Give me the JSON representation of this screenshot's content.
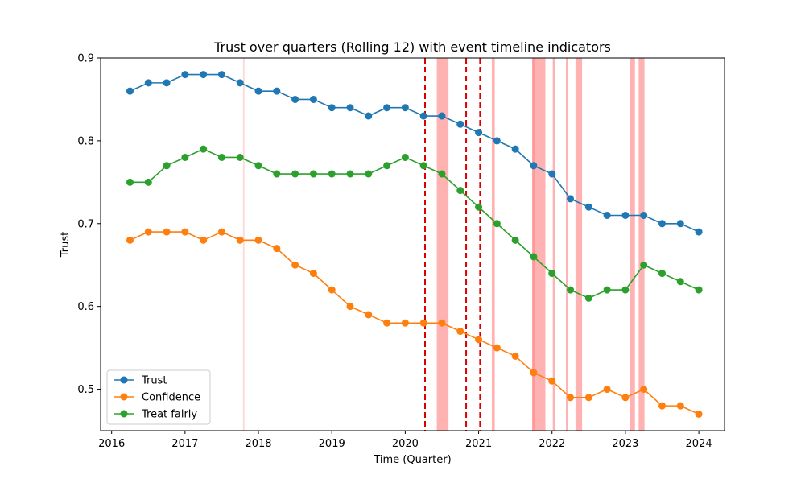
{
  "chart_data": {
    "type": "line",
    "title": "Trust over quarters (Rolling 12) with event timeline indicators",
    "xlabel": "Time (Quarter)",
    "ylabel": "Trust",
    "xlim": [
      2015.85,
      2024.35
    ],
    "ylim": [
      0.45,
      0.9
    ],
    "x_ticks": [
      2016,
      2017,
      2018,
      2019,
      2020,
      2021,
      2022,
      2023,
      2024
    ],
    "y_ticks": [
      0.5,
      0.6,
      0.7,
      0.8,
      0.9
    ],
    "y_tick_labels": [
      "0.5",
      "0.6",
      "0.7",
      "0.8",
      "0.9"
    ],
    "grid": false,
    "legend_position": "lower-left",
    "x": [
      2016.25,
      2016.5,
      2016.75,
      2017.0,
      2017.25,
      2017.5,
      2017.75,
      2018.0,
      2018.25,
      2018.5,
      2018.75,
      2019.0,
      2019.25,
      2019.5,
      2019.75,
      2020.0,
      2020.25,
      2020.5,
      2020.75,
      2021.0,
      2021.25,
      2021.5,
      2021.75,
      2022.0,
      2022.25,
      2022.5,
      2022.75,
      2023.0,
      2023.25,
      2023.5,
      2023.75,
      2024.0
    ],
    "series": [
      {
        "name": "Trust",
        "color": "#1f77b4",
        "values": [
          0.86,
          0.87,
          0.87,
          0.88,
          0.88,
          0.88,
          0.87,
          0.86,
          0.86,
          0.85,
          0.85,
          0.84,
          0.84,
          0.83,
          0.84,
          0.84,
          0.83,
          0.83,
          0.82,
          0.81,
          0.8,
          0.79,
          0.77,
          0.76,
          0.73,
          0.72,
          0.71,
          0.71,
          0.71,
          0.7,
          0.7,
          0.69
        ]
      },
      {
        "name": "Confidence",
        "color": "#ff7f0e",
        "values": [
          0.68,
          0.69,
          0.69,
          0.69,
          0.68,
          0.69,
          0.68,
          0.68,
          0.67,
          0.65,
          0.64,
          0.62,
          0.6,
          0.59,
          0.58,
          0.58,
          0.58,
          0.58,
          0.57,
          0.56,
          0.55,
          0.54,
          0.52,
          0.51,
          0.49,
          0.49,
          0.5,
          0.49,
          0.5,
          0.48,
          0.48,
          0.47
        ]
      },
      {
        "name": "Treat fairly",
        "color": "#2ca02c",
        "values": [
          0.75,
          0.75,
          0.77,
          0.78,
          0.79,
          0.78,
          0.78,
          0.77,
          0.76,
          0.76,
          0.76,
          0.76,
          0.76,
          0.76,
          0.77,
          0.78,
          0.77,
          0.76,
          0.74,
          0.72,
          0.7,
          0.68,
          0.66,
          0.64,
          0.62,
          0.61,
          0.62,
          0.62,
          0.65,
          0.64,
          0.63,
          0.62
        ]
      }
    ],
    "event_lines": [
      2020.27,
      2020.83,
      2021.02
    ],
    "event_line_color": "#dd0000",
    "event_spans": [
      {
        "start": 2017.79,
        "end": 2017.81,
        "opacity": 0.3
      },
      {
        "start": 2020.43,
        "end": 2020.59,
        "opacity": 0.6
      },
      {
        "start": 2021.18,
        "end": 2021.22,
        "opacity": 0.6
      },
      {
        "start": 2021.73,
        "end": 2021.77,
        "opacity": 0.8
      },
      {
        "start": 2021.77,
        "end": 2021.91,
        "opacity": 0.6
      },
      {
        "start": 2022.01,
        "end": 2022.04,
        "opacity": 0.6
      },
      {
        "start": 2022.19,
        "end": 2022.22,
        "opacity": 0.6
      },
      {
        "start": 2022.32,
        "end": 2022.41,
        "opacity": 0.6
      },
      {
        "start": 2023.06,
        "end": 2023.13,
        "opacity": 0.6
      },
      {
        "start": 2023.18,
        "end": 2023.26,
        "opacity": 0.6
      }
    ],
    "event_span_color": "#ff7f7f"
  }
}
